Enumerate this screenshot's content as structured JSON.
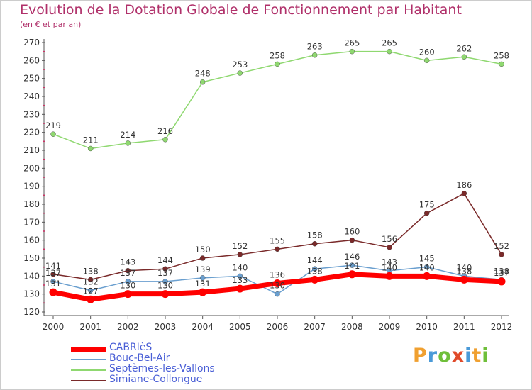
{
  "title": "Evolution de la Dotation Globale de Fonctionnement par Habitant",
  "subtitle": "(en € et par an)",
  "brand": {
    "text": "Proxiti",
    "letters": [
      {
        "ch": "P",
        "color": "#f0a030"
      },
      {
        "ch": "r",
        "color": "#4a9ad8"
      },
      {
        "ch": "o",
        "color": "#6fbf3a"
      },
      {
        "ch": "x",
        "color": "#e04a2a"
      },
      {
        "ch": "i",
        "color": "#4a9ad8"
      },
      {
        "ch": "t",
        "color": "#f0a030"
      },
      {
        "ch": "i",
        "color": "#6fbf3a"
      }
    ]
  },
  "chart_data": {
    "type": "line",
    "title": "Evolution de la Dotation Globale de Fonctionnement par Habitant",
    "subtitle": "(en € et par an)",
    "x": [
      "2000",
      "2001",
      "2002",
      "2003",
      "2004",
      "2005",
      "2006",
      "2007",
      "2008",
      "2009",
      "2010",
      "2011",
      "2012"
    ],
    "ylim": [
      120,
      270
    ],
    "yticks": [
      120,
      130,
      140,
      150,
      160,
      170,
      180,
      190,
      200,
      210,
      220,
      230,
      240,
      250,
      260,
      270
    ],
    "grid": false,
    "legend_position": "bottom-left",
    "series": [
      {
        "name": "CABRIèS",
        "color": "#ff0000",
        "width": 7,
        "values": [
          131,
          127,
          130,
          130,
          131,
          133,
          136,
          138,
          141,
          140,
          140,
          138,
          137
        ]
      },
      {
        "name": "Bouc-Bel-Air",
        "color": "#6a9fcf",
        "width": 1.5,
        "values": [
          137,
          132,
          137,
          137,
          139,
          140,
          130,
          144,
          146,
          143,
          145,
          140,
          138
        ]
      },
      {
        "name": "Septèmes-les-Vallons",
        "color": "#8fd870",
        "width": 1.5,
        "values": [
          219,
          211,
          214,
          216,
          248,
          253,
          258,
          263,
          265,
          265,
          260,
          262,
          258
        ]
      },
      {
        "name": "Simiane-Collongue",
        "color": "#7a2a2a",
        "width": 1.5,
        "values": [
          141,
          138,
          143,
          144,
          150,
          152,
          155,
          158,
          160,
          156,
          175,
          186,
          152
        ]
      }
    ]
  }
}
